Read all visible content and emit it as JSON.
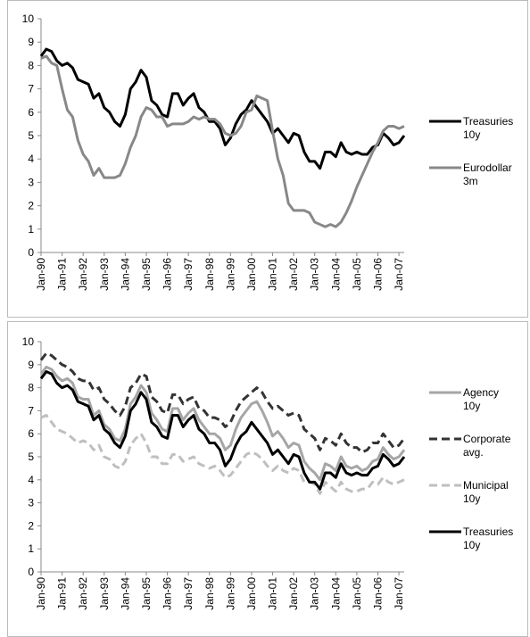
{
  "chart_data": [
    {
      "type": "line",
      "legend": "right",
      "ylim": [
        0,
        10
      ],
      "yticks": [
        0,
        1,
        2,
        3,
        4,
        5,
        6,
        7,
        8,
        9,
        10
      ],
      "categories": [
        "Jan-90",
        null,
        null,
        null,
        "Jan-91",
        null,
        null,
        null,
        "Jan-92",
        null,
        null,
        null,
        "Jan-93",
        null,
        null,
        null,
        "Jan-94",
        null,
        null,
        null,
        "Jan-95",
        null,
        null,
        null,
        "Jan-96",
        null,
        null,
        null,
        "Jan-97",
        null,
        null,
        null,
        "Jan-98",
        null,
        null,
        null,
        "Jan-99",
        null,
        null,
        null,
        "Jan-00",
        null,
        null,
        null,
        "Jan-01",
        null,
        null,
        null,
        "Jan-02",
        null,
        null,
        null,
        "Jan-03",
        null,
        null,
        null,
        "Jan-04",
        null,
        null,
        null,
        "Jan-05",
        null,
        null,
        null,
        "Jan-06",
        null,
        null,
        null,
        "Jan-07",
        null
      ],
      "series": [
        {
          "name": "Treasuries 10y",
          "color": "#000000",
          "dash": false,
          "values": [
            8.4,
            8.7,
            8.6,
            8.2,
            8.0,
            8.1,
            7.9,
            7.4,
            7.3,
            7.2,
            6.6,
            6.8,
            6.2,
            6.0,
            5.6,
            5.4,
            5.9,
            7.0,
            7.3,
            7.8,
            7.5,
            6.5,
            6.3,
            5.9,
            5.8,
            6.8,
            6.8,
            6.3,
            6.6,
            6.8,
            6.2,
            6.0,
            5.6,
            5.6,
            5.3,
            4.6,
            4.9,
            5.5,
            5.9,
            6.1,
            6.5,
            6.2,
            5.9,
            5.6,
            5.1,
            5.3,
            5.0,
            4.7,
            5.1,
            5.0,
            4.3,
            3.9,
            3.9,
            3.6,
            4.3,
            4.3,
            4.1,
            4.7,
            4.3,
            4.2,
            4.3,
            4.2,
            4.2,
            4.5,
            4.6,
            5.1,
            4.9,
            4.6,
            4.7,
            5.0
          ]
        },
        {
          "name": "Eurodollar 3m",
          "color": "#888888",
          "dash": false,
          "values": [
            8.3,
            8.4,
            8.1,
            8.0,
            7.0,
            6.1,
            5.8,
            4.8,
            4.2,
            3.9,
            3.3,
            3.6,
            3.2,
            3.2,
            3.2,
            3.3,
            3.8,
            4.5,
            5.0,
            5.8,
            6.2,
            6.1,
            5.8,
            5.8,
            5.4,
            5.5,
            5.5,
            5.5,
            5.6,
            5.8,
            5.7,
            5.8,
            5.7,
            5.7,
            5.5,
            5.1,
            5.0,
            5.1,
            5.4,
            6.0,
            6.1,
            6.7,
            6.6,
            6.5,
            5.2,
            4.0,
            3.3,
            2.1,
            1.8,
            1.8,
            1.8,
            1.7,
            1.3,
            1.2,
            1.1,
            1.2,
            1.1,
            1.3,
            1.7,
            2.2,
            2.8,
            3.3,
            3.8,
            4.3,
            4.7,
            5.2,
            5.4,
            5.4,
            5.3,
            5.4
          ]
        }
      ]
    },
    {
      "type": "line",
      "legend": "right",
      "ylim": [
        0,
        10
      ],
      "yticks": [
        0,
        1,
        2,
        3,
        4,
        5,
        6,
        7,
        8,
        9,
        10
      ],
      "categories": [
        "Jan-90",
        null,
        null,
        null,
        "Jan-91",
        null,
        null,
        null,
        "Jan-92",
        null,
        null,
        null,
        "Jan-93",
        null,
        null,
        null,
        "Jan-94",
        null,
        null,
        null,
        "Jan-95",
        null,
        null,
        null,
        "Jan-96",
        null,
        null,
        null,
        "Jan-97",
        null,
        null,
        null,
        "Jan-98",
        null,
        null,
        null,
        "Jan-99",
        null,
        null,
        null,
        "Jan-00",
        null,
        null,
        null,
        "Jan-01",
        null,
        null,
        null,
        "Jan-02",
        null,
        null,
        null,
        "Jan-03",
        null,
        null,
        null,
        "Jan-04",
        null,
        null,
        null,
        "Jan-05",
        null,
        null,
        null,
        "Jan-06",
        null,
        null,
        null,
        "Jan-07",
        null
      ],
      "series": [
        {
          "name": "Agency 10y",
          "color": "#a6a6a6",
          "dash": false,
          "values": [
            8.6,
            8.9,
            8.8,
            8.5,
            8.3,
            8.4,
            8.2,
            7.6,
            7.5,
            7.5,
            6.8,
            7.0,
            6.4,
            6.2,
            5.8,
            5.7,
            6.2,
            7.3,
            7.6,
            8.1,
            7.8,
            6.9,
            6.6,
            6.2,
            6.1,
            7.1,
            7.1,
            6.6,
            6.9,
            7.1,
            6.6,
            6.3,
            6.0,
            6.0,
            5.8,
            5.3,
            5.5,
            6.2,
            6.7,
            7.0,
            7.3,
            7.4,
            7.0,
            6.5,
            5.9,
            6.1,
            5.8,
            5.4,
            5.6,
            5.5,
            4.8,
            4.5,
            4.3,
            4.0,
            4.7,
            4.6,
            4.4,
            5.0,
            4.6,
            4.5,
            4.6,
            4.4,
            4.5,
            4.8,
            4.9,
            5.4,
            5.1,
            4.9,
            5.0,
            5.3
          ]
        },
        {
          "name": "Corporate avg.",
          "color": "#333333",
          "dash": true,
          "values": [
            9.2,
            9.5,
            9.4,
            9.2,
            9.0,
            8.9,
            8.7,
            8.4,
            8.3,
            8.3,
            7.9,
            8.0,
            7.5,
            7.3,
            7.0,
            6.8,
            7.2,
            8.0,
            8.2,
            8.6,
            8.5,
            7.6,
            7.4,
            7.0,
            6.9,
            7.7,
            7.7,
            7.3,
            7.5,
            7.6,
            7.1,
            7.0,
            6.7,
            6.7,
            6.6,
            6.3,
            6.5,
            7.0,
            7.4,
            7.6,
            7.8,
            8.0,
            7.8,
            7.4,
            7.1,
            7.2,
            7.0,
            6.8,
            6.9,
            6.8,
            6.2,
            6.0,
            5.8,
            5.3,
            5.8,
            5.7,
            5.5,
            6.0,
            5.6,
            5.4,
            5.4,
            5.2,
            5.3,
            5.6,
            5.6,
            6.0,
            5.7,
            5.4,
            5.5,
            5.8
          ]
        },
        {
          "name": "Municipal 10y",
          "color": "#bfbfbf",
          "dash": true,
          "values": [
            6.7,
            6.8,
            6.5,
            6.2,
            6.1,
            6.0,
            5.8,
            5.6,
            5.7,
            5.6,
            5.3,
            5.5,
            5.0,
            4.9,
            4.6,
            4.5,
            4.8,
            5.5,
            5.8,
            6.0,
            5.6,
            5.0,
            5.0,
            4.7,
            4.7,
            5.1,
            5.1,
            4.8,
            4.9,
            5.0,
            4.7,
            4.6,
            4.5,
            4.6,
            4.4,
            4.1,
            4.2,
            4.5,
            4.8,
            5.1,
            5.2,
            5.1,
            4.9,
            4.6,
            4.4,
            4.6,
            4.4,
            4.3,
            4.5,
            4.4,
            3.9,
            3.9,
            3.8,
            3.4,
            3.9,
            3.7,
            3.5,
            3.9,
            3.6,
            3.5,
            3.5,
            3.6,
            3.6,
            3.9,
            3.8,
            4.1,
            3.9,
            3.8,
            3.9,
            4.0
          ]
        },
        {
          "name": "Treasuries 10y",
          "color": "#000000",
          "dash": false,
          "values": [
            8.4,
            8.7,
            8.6,
            8.2,
            8.0,
            8.1,
            7.9,
            7.4,
            7.3,
            7.2,
            6.6,
            6.8,
            6.2,
            6.0,
            5.6,
            5.4,
            5.9,
            7.0,
            7.3,
            7.8,
            7.5,
            6.5,
            6.3,
            5.9,
            5.8,
            6.8,
            6.8,
            6.3,
            6.6,
            6.8,
            6.2,
            6.0,
            5.6,
            5.6,
            5.3,
            4.6,
            4.9,
            5.5,
            5.9,
            6.1,
            6.5,
            6.2,
            5.9,
            5.6,
            5.1,
            5.3,
            5.0,
            4.7,
            5.1,
            5.0,
            4.3,
            3.9,
            3.9,
            3.6,
            4.3,
            4.3,
            4.1,
            4.7,
            4.3,
            4.2,
            4.3,
            4.2,
            4.2,
            4.5,
            4.6,
            5.1,
            4.9,
            4.6,
            4.7,
            5.0
          ]
        }
      ]
    }
  ]
}
